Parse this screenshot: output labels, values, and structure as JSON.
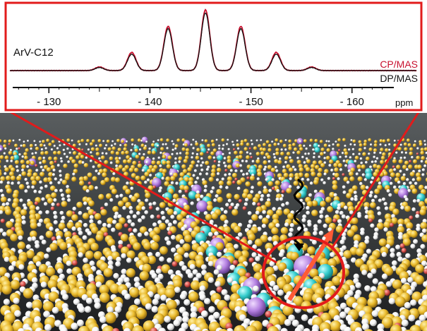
{
  "chart_data": {
    "type": "line",
    "sample_label": "ArV-C12",
    "x_unit_label": "ppm",
    "xlim": [
      -126,
      -164
    ],
    "x_ticks": [
      -130,
      -140,
      -150,
      -160
    ],
    "x_tick_labels": [
      "- 130",
      "- 140",
      "- 150",
      "- 160"
    ],
    "series": [
      {
        "name": "CP/MAS",
        "color": "#c8102e",
        "peaks": [
          {
            "x": -135.0,
            "y": 0.06
          },
          {
            "x": -138.2,
            "y": 0.3
          },
          {
            "x": -141.8,
            "y": 0.73
          },
          {
            "x": -145.5,
            "y": 1.0
          },
          {
            "x": -149.0,
            "y": 0.73
          },
          {
            "x": -152.5,
            "y": 0.3
          },
          {
            "x": -156.0,
            "y": 0.06
          }
        ]
      },
      {
        "name": "DP/MAS",
        "color": "#111111",
        "peaks": [
          {
            "x": -135.0,
            "y": 0.05
          },
          {
            "x": -138.2,
            "y": 0.27
          },
          {
            "x": -141.8,
            "y": 0.69
          },
          {
            "x": -145.5,
            "y": 0.95
          },
          {
            "x": -149.0,
            "y": 0.69
          },
          {
            "x": -152.5,
            "y": 0.27
          },
          {
            "x": -156.0,
            "y": 0.05
          }
        ]
      }
    ],
    "grid": false
  },
  "colors": {
    "frame": "#e21b1b",
    "scene_background": "#444849",
    "carbon": "#e9b92a",
    "hydrogen": "#f5f5f5",
    "oxygen": "#d9534f",
    "fluorine": "#33cccc",
    "boron": "#b37fe0",
    "spin_arrow": "#ff5a36"
  }
}
